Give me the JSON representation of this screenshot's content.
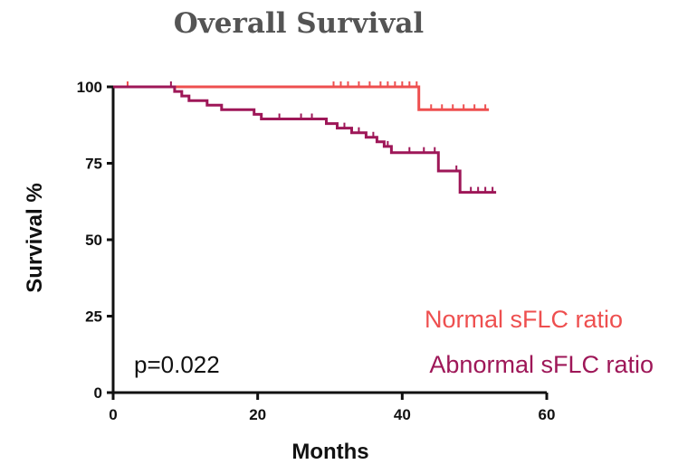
{
  "chart_data": {
    "type": "line",
    "title": "Overall Survival",
    "xlabel": "Months",
    "ylabel": "Survival %",
    "xlim": [
      0,
      60
    ],
    "ylim": [
      0,
      100
    ],
    "xticks": [
      "0",
      "20",
      "40",
      "60"
    ],
    "yticks": [
      "0",
      "25",
      "50",
      "75",
      "100"
    ],
    "grid": false,
    "annotation": "p=0.022",
    "series": [
      {
        "name": "Normal sFLC ratio",
        "color": "#ee4f4f",
        "steps": [
          [
            0,
            100
          ],
          [
            42.3,
            100
          ],
          [
            42.3,
            92.5
          ],
          [
            52,
            92.5
          ]
        ],
        "censors": [
          [
            2,
            100
          ],
          [
            30.5,
            100
          ],
          [
            31.5,
            100
          ],
          [
            32.5,
            100
          ],
          [
            34,
            100
          ],
          [
            35.5,
            100
          ],
          [
            37,
            100
          ],
          [
            38,
            100
          ],
          [
            39,
            100
          ],
          [
            40,
            100
          ],
          [
            41,
            100
          ],
          [
            42,
            100
          ],
          [
            44,
            92.5
          ],
          [
            45.5,
            92.5
          ],
          [
            47,
            92.5
          ],
          [
            48.5,
            92.5
          ],
          [
            50,
            92.5
          ],
          [
            51.5,
            92.5
          ]
        ]
      },
      {
        "name": "Abnormal sFLC ratio",
        "color": "#9e1758",
        "steps": [
          [
            0,
            100
          ],
          [
            8.5,
            100
          ],
          [
            8.5,
            98.5
          ],
          [
            9.5,
            98.5
          ],
          [
            9.5,
            97
          ],
          [
            10.5,
            97
          ],
          [
            10.5,
            95.5
          ],
          [
            13,
            95.5
          ],
          [
            13,
            94
          ],
          [
            15,
            94
          ],
          [
            15,
            92.5
          ],
          [
            19.5,
            92.5
          ],
          [
            19.5,
            91
          ],
          [
            20.5,
            91
          ],
          [
            20.5,
            89.5
          ],
          [
            29.5,
            89.5
          ],
          [
            29.5,
            88
          ],
          [
            31,
            88
          ],
          [
            31,
            86.5
          ],
          [
            33,
            86.5
          ],
          [
            33,
            85
          ],
          [
            35,
            85
          ],
          [
            35,
            83.5
          ],
          [
            36.5,
            83.5
          ],
          [
            36.5,
            82
          ],
          [
            37.5,
            82
          ],
          [
            37.5,
            80.5
          ],
          [
            38.5,
            80.5
          ],
          [
            38.5,
            78.5
          ],
          [
            45,
            78.5
          ],
          [
            45,
            72.5
          ],
          [
            48,
            72.5
          ],
          [
            48,
            65.5
          ],
          [
            53,
            65.5
          ]
        ],
        "censors": [
          [
            8,
            100
          ],
          [
            23,
            89.5
          ],
          [
            26,
            89.5
          ],
          [
            27.5,
            89.5
          ],
          [
            32,
            86.5
          ],
          [
            34,
            85
          ],
          [
            36,
            83.5
          ],
          [
            38,
            80.5
          ],
          [
            41,
            78.5
          ],
          [
            43,
            78.5
          ],
          [
            44.5,
            78.5
          ],
          [
            47.5,
            72.5
          ],
          [
            49.5,
            65.5
          ],
          [
            50.5,
            65.5
          ],
          [
            51.5,
            65.5
          ],
          [
            52.5,
            65.5
          ]
        ]
      }
    ]
  }
}
